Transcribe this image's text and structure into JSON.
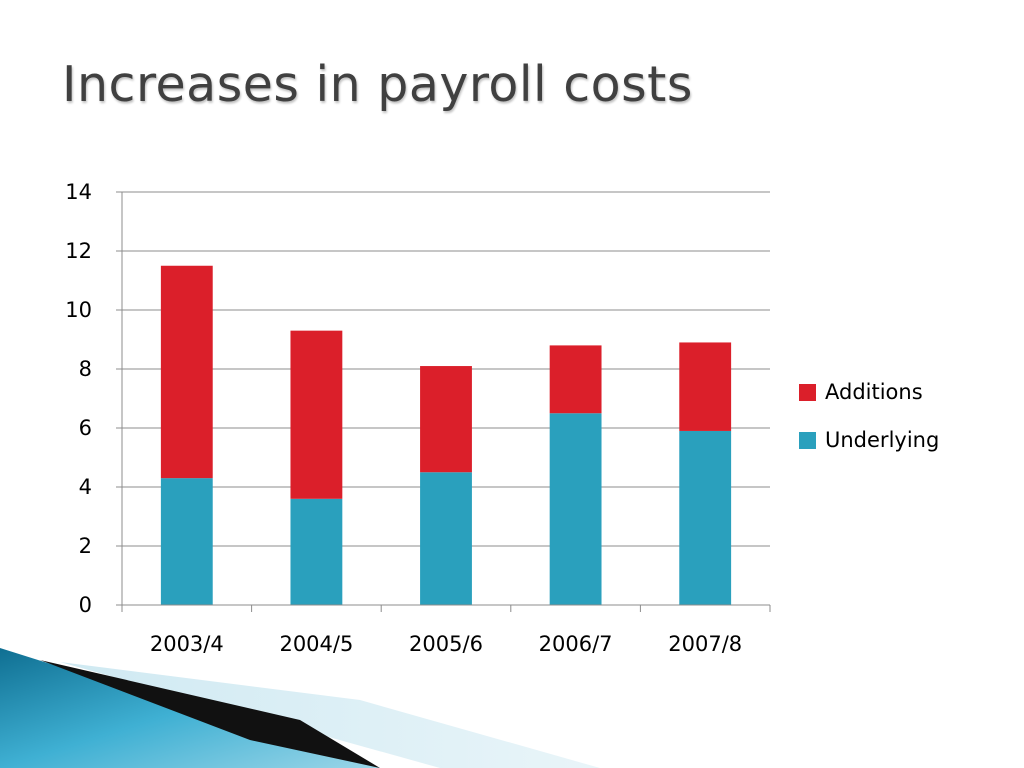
{
  "slide": {
    "title": "Increases in payroll costs"
  },
  "chart_data": {
    "type": "bar",
    "stacked": true,
    "categories": [
      "2003/4",
      "2004/5",
      "2005/6",
      "2006/7",
      "2007/8"
    ],
    "series": [
      {
        "name": "Underlying",
        "color": "#2aa0bd",
        "values": [
          4.3,
          3.6,
          4.5,
          6.5,
          5.9
        ]
      },
      {
        "name": "Additions",
        "color": "#db1f2a",
        "values": [
          7.2,
          5.7,
          3.6,
          2.3,
          3.0
        ]
      }
    ],
    "ylim": [
      0,
      14
    ],
    "yticks": [
      0,
      2,
      4,
      6,
      8,
      10,
      12,
      14
    ],
    "grid": true,
    "legend": {
      "placement": "right",
      "order": [
        "Additions",
        "Underlying"
      ]
    },
    "title": "",
    "xlabel": "",
    "ylabel": ""
  }
}
